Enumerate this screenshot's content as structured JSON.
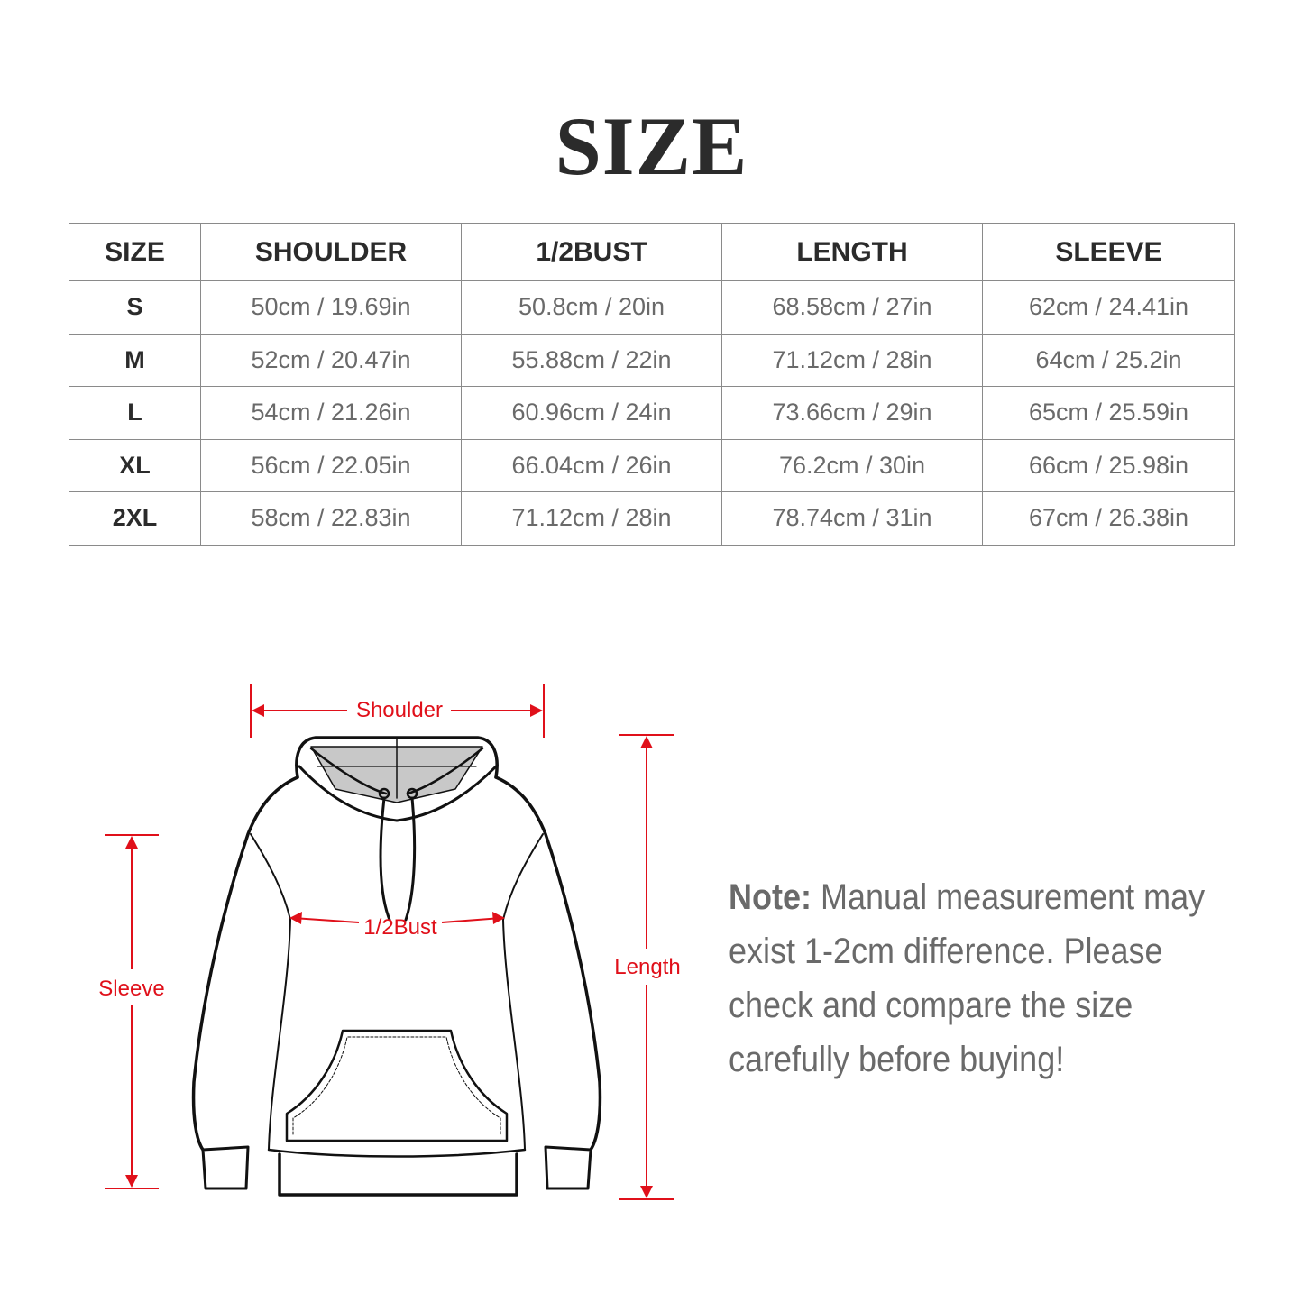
{
  "title": "SIZE",
  "table": {
    "headers": [
      "SIZE",
      "SHOULDER",
      "1/2BUST",
      "LENGTH",
      "SLEEVE"
    ],
    "rows": [
      [
        "S",
        "50cm / 19.69in",
        "50.8cm / 20in",
        "68.58cm / 27in",
        "62cm / 24.41in"
      ],
      [
        "M",
        "52cm / 20.47in",
        "55.88cm / 22in",
        "71.12cm / 28in",
        "64cm / 25.2in"
      ],
      [
        "L",
        "54cm / 21.26in",
        "60.96cm / 24in",
        "73.66cm / 29in",
        "65cm / 25.59in"
      ],
      [
        "XL",
        "56cm / 22.05in",
        "66.04cm / 26in",
        "76.2cm / 30in",
        "66cm / 25.98in"
      ],
      [
        "2XL",
        "58cm / 22.83in",
        "71.12cm / 28in",
        "78.74cm / 31in",
        "67cm / 26.38in"
      ]
    ]
  },
  "diagram": {
    "labels": {
      "shoulder": "Shoulder",
      "bust": "1/2Bust",
      "sleeve": "Sleeve",
      "length": "Length"
    },
    "measure_color": "#e0101a"
  },
  "note": {
    "label": "Note:",
    "text": " Manual measurement may exist 1-2cm difference. Please check and compare the size carefully before buying!"
  }
}
